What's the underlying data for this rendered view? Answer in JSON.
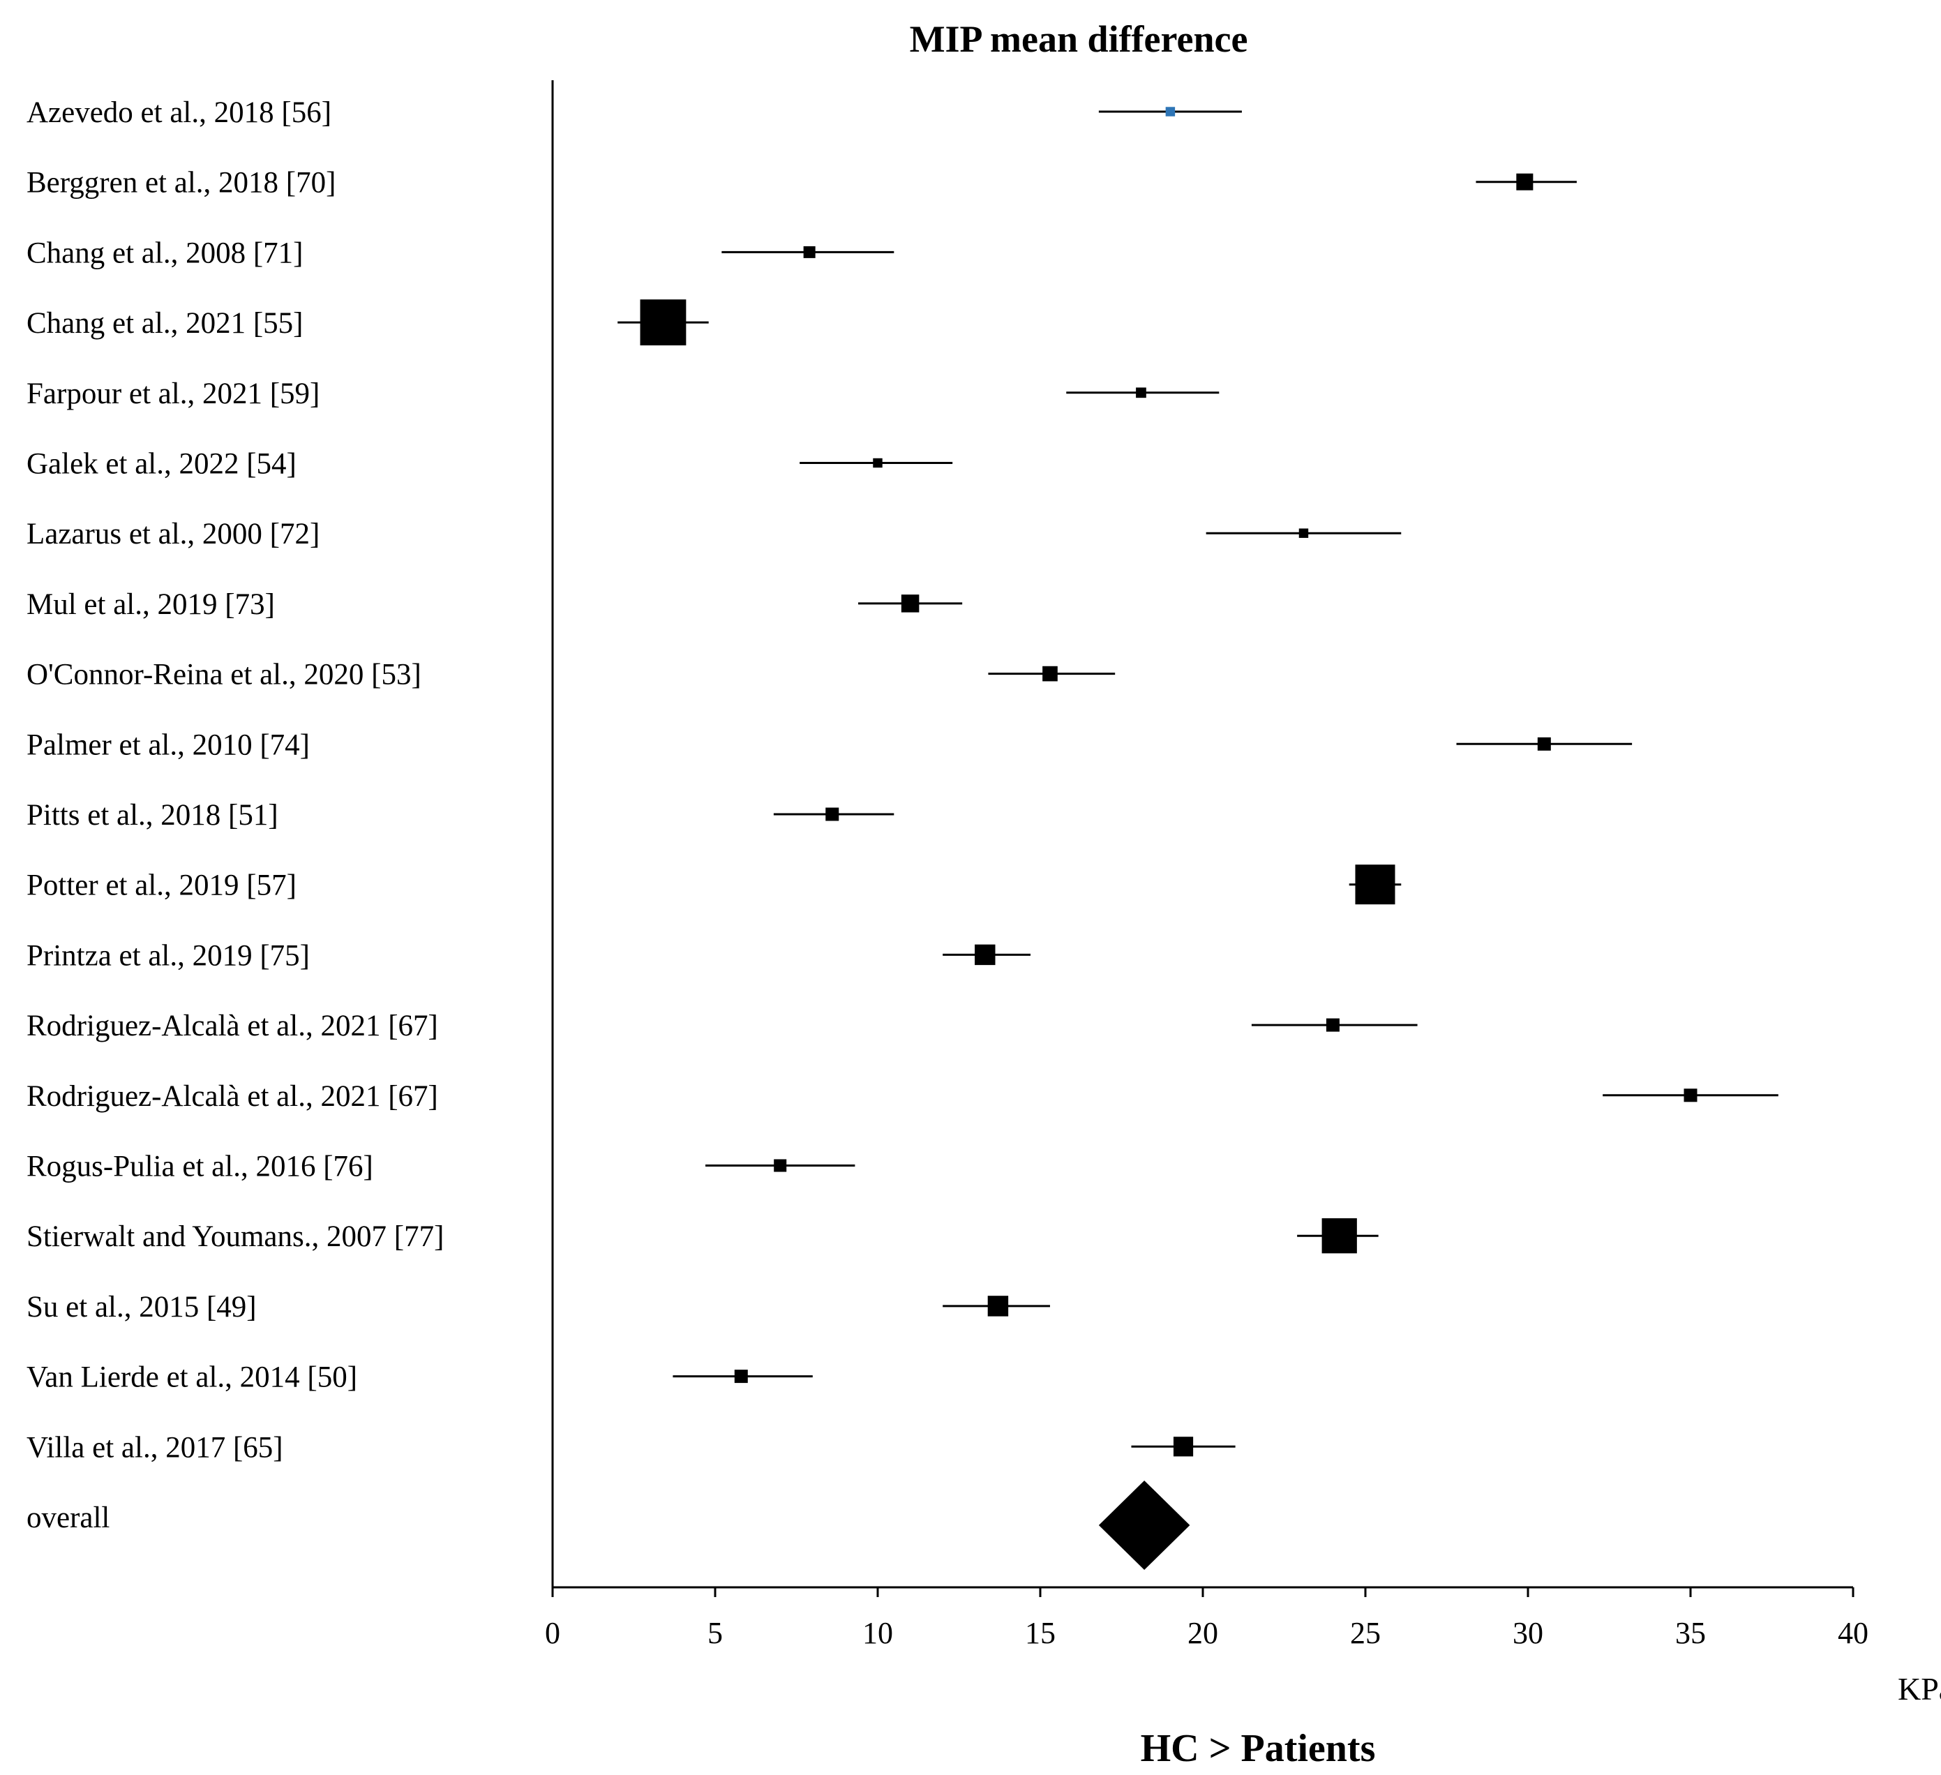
{
  "chart_data": {
    "type": "forest",
    "title": "MIP mean difference",
    "xlabel": "HC > Patients",
    "unit": "KPa",
    "xlim": [
      0,
      40
    ],
    "xticks": [
      0,
      5,
      10,
      15,
      20,
      25,
      30,
      35,
      40
    ],
    "studies": [
      {
        "label": "Azevedo et al., 2018 [56]",
        "mean": 19.0,
        "lower": 16.8,
        "upper": 21.2,
        "weight": 0.5,
        "color": "#2e75b6"
      },
      {
        "label": "Berggren et al., 2018 [70]",
        "mean": 29.9,
        "lower": 28.4,
        "upper": 31.5,
        "weight": 1.6,
        "color": "#000000"
      },
      {
        "label": "Chang et al., 2008 [71]",
        "mean": 7.9,
        "lower": 5.2,
        "upper": 10.5,
        "weight": 0.8,
        "color": "#000000"
      },
      {
        "label": "Chang et al., 2021 [55]",
        "mean": 3.4,
        "lower": 2.0,
        "upper": 4.8,
        "weight": 12.0,
        "color": "#000000"
      },
      {
        "label": "Farpour et al., 2021 [59]",
        "mean": 18.1,
        "lower": 15.8,
        "upper": 20.5,
        "weight": 0.6,
        "color": "#000000"
      },
      {
        "label": "Galek et al., 2022 [54]",
        "mean": 10.0,
        "lower": 7.6,
        "upper": 12.3,
        "weight": 0.5,
        "color": "#000000"
      },
      {
        "label": "Lazarus et al., 2000 [72]",
        "mean": 23.1,
        "lower": 20.1,
        "upper": 26.1,
        "weight": 0.5,
        "color": "#000000"
      },
      {
        "label": "Mul et al., 2019 [73]",
        "mean": 11.0,
        "lower": 9.4,
        "upper": 12.6,
        "weight": 1.8,
        "color": "#000000"
      },
      {
        "label": "O'Connor-Reina et al., 2020 [53]",
        "mean": 15.3,
        "lower": 13.4,
        "upper": 17.3,
        "weight": 1.3,
        "color": "#000000"
      },
      {
        "label": "Palmer et al., 2010 [74]",
        "mean": 30.5,
        "lower": 27.8,
        "upper": 33.2,
        "weight": 1.0,
        "color": "#000000"
      },
      {
        "label": "Pitts et al., 2018 [51]",
        "mean": 8.6,
        "lower": 6.8,
        "upper": 10.5,
        "weight": 1.0,
        "color": "#000000"
      },
      {
        "label": "Potter et al., 2019 [57]",
        "mean": 25.3,
        "lower": 24.5,
        "upper": 26.1,
        "weight": 9.0,
        "color": "#000000"
      },
      {
        "label": "Printza et al., 2019 [75]",
        "mean": 13.3,
        "lower": 12.0,
        "upper": 14.7,
        "weight": 2.4,
        "color": "#000000"
      },
      {
        "label": "Rodriguez-Alcalà et al., 2021 [67]",
        "mean": 24.0,
        "lower": 21.5,
        "upper": 26.6,
        "weight": 1.0,
        "color": "#000000"
      },
      {
        "label": "Rodriguez-Alcalà et al., 2021 [67]",
        "mean": 35.0,
        "lower": 32.3,
        "upper": 37.7,
        "weight": 1.0,
        "color": "#000000"
      },
      {
        "label": "Rogus-Pulia et al., 2016 [76]",
        "mean": 7.0,
        "lower": 4.7,
        "upper": 9.3,
        "weight": 0.9,
        "color": "#000000"
      },
      {
        "label": "Stierwalt and Youmans.,  2007 [77]",
        "mean": 24.2,
        "lower": 22.9,
        "upper": 25.4,
        "weight": 7.0,
        "color": "#000000"
      },
      {
        "label": "Su et al., 2015 [49]",
        "mean": 13.7,
        "lower": 12.0,
        "upper": 15.3,
        "weight": 2.4,
        "color": "#000000"
      },
      {
        "label": "Van Lierde et al., 2014 [50]",
        "mean": 5.8,
        "lower": 3.7,
        "upper": 8.0,
        "weight": 1.0,
        "color": "#000000"
      },
      {
        "label": "Villa et al., 2017 [65]",
        "mean": 19.4,
        "lower": 17.8,
        "upper": 21.0,
        "weight": 2.2,
        "color": "#000000"
      }
    ],
    "overall": {
      "label": "overall",
      "mean": 18.2,
      "lower": 16.8,
      "upper": 19.6
    }
  }
}
